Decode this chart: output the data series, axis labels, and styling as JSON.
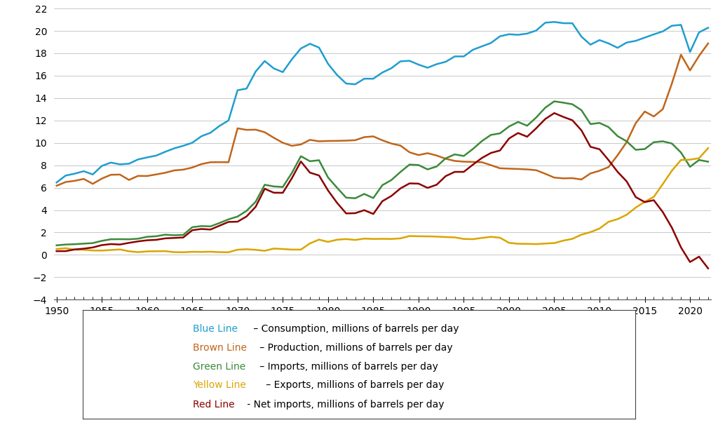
{
  "years": [
    1950,
    1951,
    1952,
    1953,
    1954,
    1955,
    1956,
    1957,
    1958,
    1959,
    1960,
    1961,
    1962,
    1963,
    1964,
    1965,
    1966,
    1967,
    1968,
    1969,
    1970,
    1971,
    1972,
    1973,
    1974,
    1975,
    1976,
    1977,
    1978,
    1979,
    1980,
    1981,
    1982,
    1983,
    1984,
    1985,
    1986,
    1987,
    1988,
    1989,
    1990,
    1991,
    1992,
    1993,
    1994,
    1995,
    1996,
    1997,
    1998,
    1999,
    2000,
    2001,
    2002,
    2003,
    2004,
    2005,
    2006,
    2007,
    2008,
    2009,
    2010,
    2011,
    2012,
    2013,
    2014,
    2015,
    2016,
    2017,
    2018,
    2019,
    2020,
    2021,
    2022
  ],
  "consumption": [
    6.46,
    7.08,
    7.25,
    7.47,
    7.18,
    7.94,
    8.24,
    8.08,
    8.14,
    8.52,
    8.7,
    8.86,
    9.2,
    9.51,
    9.74,
    10.01,
    10.59,
    10.9,
    11.51,
    12.0,
    14.7,
    14.85,
    16.37,
    17.31,
    16.65,
    16.32,
    17.46,
    18.43,
    18.85,
    18.51,
    17.06,
    16.06,
    15.3,
    15.23,
    15.73,
    15.73,
    16.28,
    16.67,
    17.28,
    17.33,
    16.99,
    16.71,
    17.03,
    17.24,
    17.72,
    17.72,
    18.31,
    18.62,
    18.92,
    19.52,
    19.7,
    19.65,
    19.76,
    20.03,
    20.73,
    20.8,
    20.69,
    20.68,
    19.49,
    18.77,
    19.18,
    18.88,
    18.49,
    18.96,
    19.11,
    19.4,
    19.69,
    19.96,
    20.46,
    20.54,
    18.12,
    19.87,
    20.28
  ],
  "production": [
    6.17,
    6.5,
    6.61,
    6.78,
    6.34,
    6.81,
    7.15,
    7.17,
    6.69,
    7.05,
    7.04,
    7.18,
    7.33,
    7.54,
    7.61,
    7.8,
    8.1,
    8.27,
    8.28,
    8.27,
    11.3,
    11.16,
    11.18,
    10.95,
    10.46,
    10.01,
    9.74,
    9.86,
    10.27,
    10.14,
    10.17,
    10.18,
    10.2,
    10.24,
    10.51,
    10.58,
    10.23,
    9.94,
    9.76,
    9.16,
    8.91,
    9.08,
    8.87,
    8.58,
    8.39,
    8.32,
    8.3,
    8.27,
    8.01,
    7.73,
    7.7,
    7.67,
    7.63,
    7.56,
    7.24,
    6.9,
    6.83,
    6.85,
    6.73,
    7.27,
    7.51,
    7.84,
    8.9,
    10.07,
    11.76,
    12.8,
    12.36,
    13.02,
    15.31,
    17.87,
    16.47,
    17.77,
    18.88
  ],
  "imports": [
    0.85,
    0.92,
    0.95,
    1.0,
    1.05,
    1.25,
    1.39,
    1.4,
    1.39,
    1.44,
    1.61,
    1.66,
    1.8,
    1.75,
    1.78,
    2.47,
    2.57,
    2.54,
    2.84,
    3.17,
    3.42,
    3.93,
    4.74,
    6.26,
    6.11,
    6.06,
    7.31,
    8.81,
    8.36,
    8.45,
    6.91,
    5.99,
    5.11,
    5.05,
    5.44,
    5.07,
    6.22,
    6.68,
    7.4,
    8.06,
    8.02,
    7.63,
    7.89,
    8.62,
    8.97,
    8.83,
    9.45,
    10.16,
    10.71,
    10.85,
    11.46,
    11.87,
    11.53,
    12.26,
    13.14,
    13.71,
    13.59,
    13.45,
    12.92,
    11.68,
    11.78,
    11.41,
    10.6,
    10.14,
    9.38,
    9.45,
    10.06,
    10.14,
    9.94,
    9.14,
    7.86,
    8.47,
    8.32
  ],
  "exports": [
    0.52,
    0.59,
    0.47,
    0.45,
    0.39,
    0.38,
    0.43,
    0.48,
    0.32,
    0.24,
    0.31,
    0.32,
    0.33,
    0.24,
    0.23,
    0.27,
    0.26,
    0.28,
    0.24,
    0.23,
    0.46,
    0.5,
    0.45,
    0.36,
    0.56,
    0.52,
    0.47,
    0.47,
    1.02,
    1.36,
    1.16,
    1.35,
    1.41,
    1.33,
    1.45,
    1.42,
    1.43,
    1.42,
    1.47,
    1.68,
    1.66,
    1.65,
    1.63,
    1.59,
    1.56,
    1.42,
    1.4,
    1.51,
    1.61,
    1.53,
    1.07,
    0.99,
    0.98,
    0.96,
    1.01,
    1.05,
    1.27,
    1.43,
    1.8,
    2.03,
    2.35,
    2.95,
    3.19,
    3.58,
    4.22,
    4.74,
    5.18,
    6.33,
    7.52,
    8.47,
    8.5,
    8.63,
    9.53
  ],
  "net_imports": [
    0.33,
    0.33,
    0.48,
    0.55,
    0.66,
    0.87,
    0.96,
    0.92,
    1.07,
    1.2,
    1.3,
    1.34,
    1.47,
    1.51,
    1.55,
    2.2,
    2.31,
    2.26,
    2.6,
    2.94,
    2.96,
    3.43,
    4.29,
    5.9,
    5.55,
    5.54,
    6.84,
    8.34,
    7.34,
    7.09,
    5.75,
    4.64,
    3.7,
    3.72,
    3.99,
    3.65,
    4.79,
    5.26,
    5.93,
    6.38,
    6.36,
    5.98,
    6.26,
    7.03,
    7.41,
    7.41,
    8.05,
    8.65,
    9.1,
    9.32,
    10.39,
    10.88,
    10.55,
    11.3,
    12.13,
    12.66,
    12.32,
    12.02,
    11.12,
    9.65,
    9.43,
    8.46,
    7.41,
    6.56,
    5.16,
    4.71,
    4.88,
    3.81,
    2.42,
    0.67,
    -0.64,
    -0.16,
    -1.21
  ],
  "colors": {
    "consumption": "#1F9ECF",
    "production": "#C0651A",
    "imports": "#3B8A3B",
    "exports": "#DAA500",
    "net_imports": "#8B0000"
  },
  "ylim": [
    -4,
    22
  ],
  "xlim": [
    1950,
    2022
  ],
  "yticks": [
    -4,
    -2,
    0,
    2,
    4,
    6,
    8,
    10,
    12,
    14,
    16,
    18,
    20,
    22
  ],
  "xticks": [
    1950,
    1955,
    1960,
    1965,
    1970,
    1975,
    1980,
    1985,
    1990,
    1995,
    2000,
    2005,
    2010,
    2015,
    2020
  ],
  "legend_items": [
    {
      "label_colored": "Blue Line",
      "label_rest": " – Consumption, millions of barrels per day",
      "color": "#1F9ECF"
    },
    {
      "label_colored": "Brown Line",
      "label_rest": " – Production, millions of barrels per day",
      "color": "#C0651A"
    },
    {
      "label_colored": "Green Line",
      "label_rest": " – Imports, millions of barrels per day",
      "color": "#3B8A3B"
    },
    {
      "label_colored": "Yellow Line",
      "label_rest": " – Exports, millions of barrels per day",
      "color": "#DAA500"
    },
    {
      "label_colored": "Red Line",
      "label_rest": " - Net imports, millions of barrels per day",
      "color": "#8B0000"
    }
  ],
  "line_width": 1.8,
  "bg_color": "#FFFFFF",
  "grid_color": "#C8C8C8"
}
